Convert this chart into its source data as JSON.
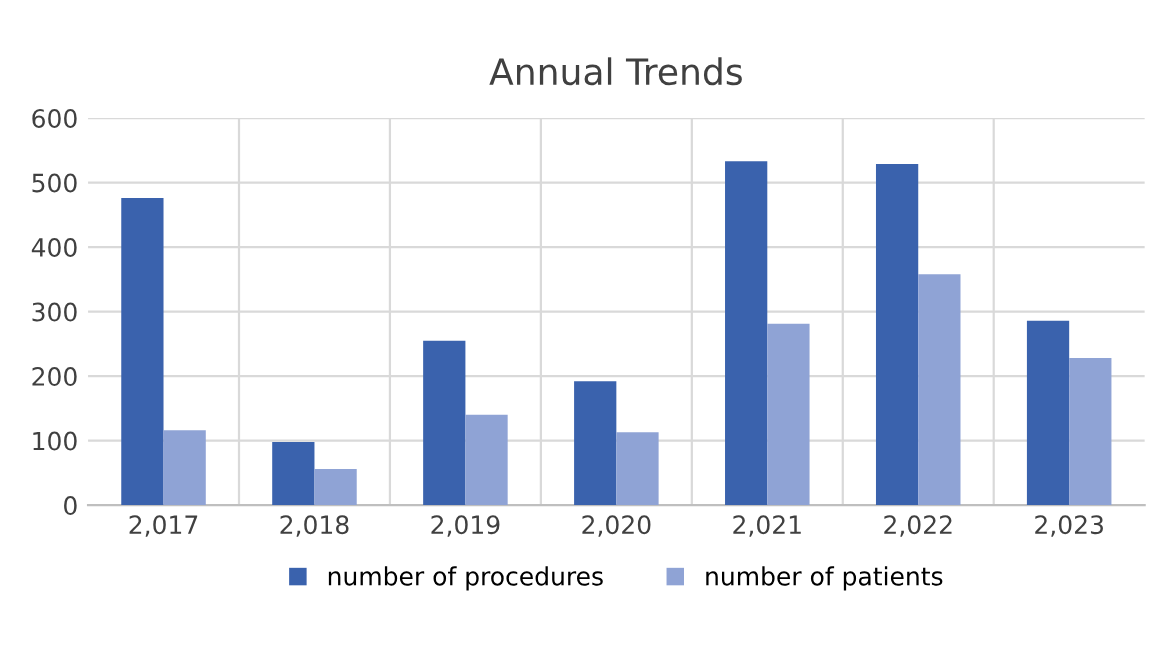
{
  "chart_data": {
    "type": "bar",
    "title": "Annual Trends",
    "categories": [
      "2,017",
      "2,018",
      "2,019",
      "2,020",
      "2,021",
      "2,022",
      "2,023"
    ],
    "series": [
      {
        "name": "number of procedures",
        "color": "#3a62ad",
        "values": [
          476,
          98,
          255,
          192,
          533,
          529,
          286
        ]
      },
      {
        "name": "number of patients",
        "color": "#8fa3d5",
        "values": [
          116,
          56,
          140,
          113,
          281,
          358,
          228
        ]
      }
    ],
    "ylim": [
      0,
      600
    ],
    "yticks": [
      0,
      100,
      200,
      300,
      400,
      500,
      600
    ],
    "grid": true,
    "legend": "bottom"
  }
}
